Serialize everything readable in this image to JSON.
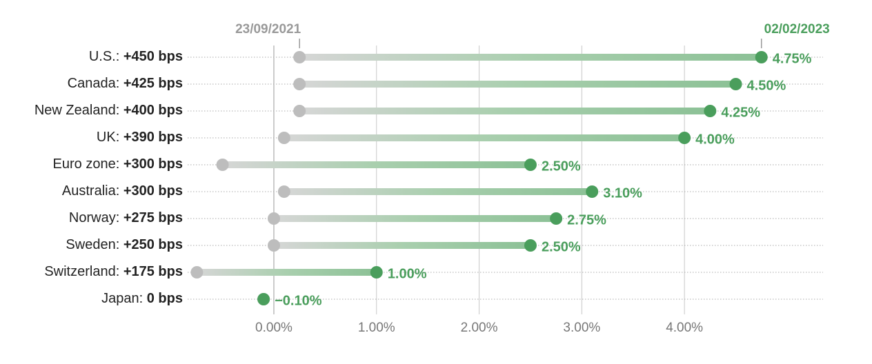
{
  "chart_data": {
    "type": "dumbbell",
    "categories": [
      "U.S.:",
      "Canada:",
      "New Zealand:",
      "UK:",
      "Euro zone:",
      "Australia:",
      "Norway:",
      "Sweden:",
      "Switzerland:",
      "Japan:"
    ],
    "change_labels": [
      "+450 bps",
      "+425 bps",
      "+400 bps",
      "+390 bps",
      "+300 bps",
      "+300 bps",
      "+275 bps",
      "+250 bps",
      "+175 bps",
      "0 bps"
    ],
    "series": [
      {
        "name": "23/09/2021",
        "color": "#bdbdbd",
        "values": [
          0.25,
          0.25,
          0.25,
          0.1,
          -0.5,
          0.1,
          0.0,
          0.0,
          -0.75,
          -0.1
        ]
      },
      {
        "name": "02/02/2023",
        "color": "#4a9e5c",
        "values": [
          4.75,
          4.5,
          4.25,
          4.0,
          2.5,
          3.1,
          2.75,
          2.5,
          1.0,
          -0.1
        ],
        "value_labels": [
          "4.75%",
          "4.50%",
          "4.25%",
          "4.00%",
          "2.50%",
          "3.10%",
          "2.75%",
          "2.50%",
          "1.00%",
          "−0.10%"
        ]
      }
    ],
    "xlim": [
      -0.84,
      5.35
    ],
    "xticks": [
      {
        "value": 0,
        "label": "0.00%"
      },
      {
        "value": 1,
        "label": "1.00%"
      },
      {
        "value": 2,
        "label": "2.00%"
      },
      {
        "value": 3,
        "label": "3.00%"
      },
      {
        "value": 4,
        "label": "4.00%"
      }
    ],
    "grid": true
  }
}
